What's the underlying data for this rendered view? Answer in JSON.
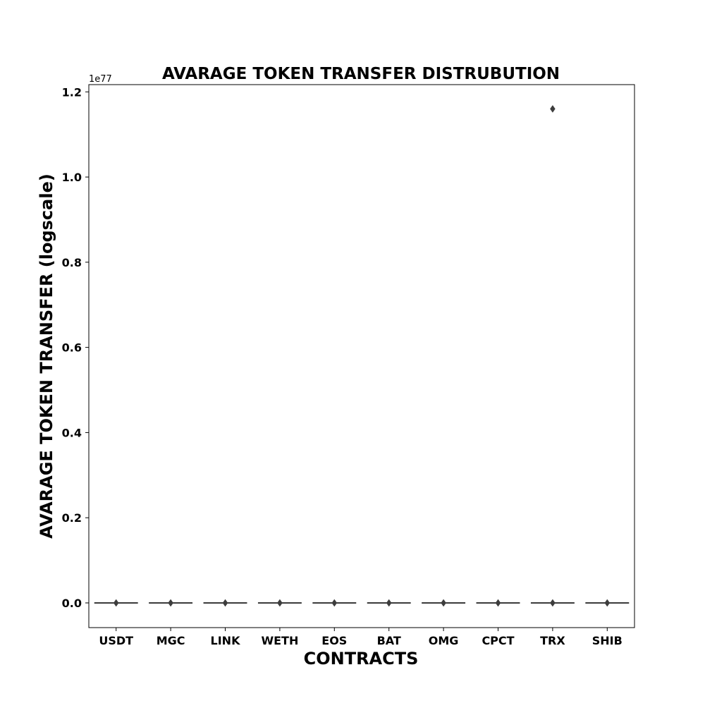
{
  "chart_data": {
    "type": "box",
    "title": "AVARAGE TOKEN TRANSFER DISTRUBUTION",
    "xlabel": "CONTRACTS",
    "ylabel": "AVARAGE TOKEN TRANSFER (logscale)",
    "y_offset_label": "1e77",
    "categories": [
      "USDT",
      "MGC",
      "LINK",
      "WETH",
      "EOS",
      "BAT",
      "OMG",
      "CPCT",
      "TRX",
      "SHIB"
    ],
    "y_ticks": [
      0.0,
      0.2,
      0.4,
      0.6,
      0.8,
      1.0,
      1.2
    ],
    "y_tick_labels": [
      "0.0",
      "0.2",
      "0.4",
      "0.6",
      "0.8",
      "1.0",
      "1.2"
    ],
    "ylim": [
      -0.058,
      1.217
    ],
    "y_scale_exponent": 77,
    "series": [
      {
        "boxes": [
          {
            "category": "USDT",
            "median": 0,
            "outliers": [
              0
            ]
          },
          {
            "category": "MGC",
            "median": 0,
            "outliers": [
              0
            ]
          },
          {
            "category": "LINK",
            "median": 0,
            "outliers": [
              0
            ]
          },
          {
            "category": "WETH",
            "median": 0,
            "outliers": [
              0
            ]
          },
          {
            "category": "EOS",
            "median": 0,
            "outliers": [
              0
            ]
          },
          {
            "category": "BAT",
            "median": 0,
            "outliers": [
              0
            ]
          },
          {
            "category": "OMG",
            "median": 0,
            "outliers": [
              0
            ]
          },
          {
            "category": "CPCT",
            "median": 0,
            "outliers": [
              0
            ]
          },
          {
            "category": "TRX",
            "median": 0,
            "outliers": [
              0,
              1.16
            ]
          },
          {
            "category": "SHIB",
            "median": 0,
            "outliers": [
              0
            ]
          }
        ]
      }
    ],
    "grid": false,
    "legend": "none",
    "colors": {
      "axis": "#000000",
      "box": "#3b3b3b",
      "marker": "#3d3d3d"
    }
  }
}
